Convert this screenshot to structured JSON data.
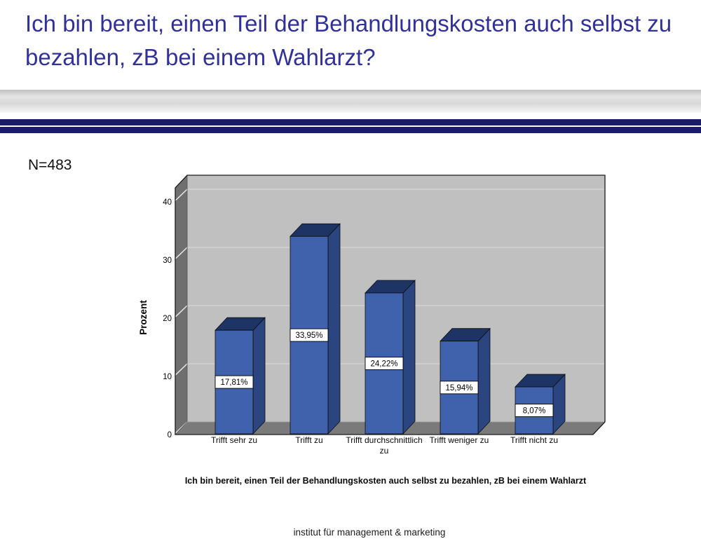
{
  "header": {
    "title": "Ich bin bereit, einen Teil der Behandlungskosten auch selbst zu bezahlen, zB bei einem Wahlarzt?",
    "title_color": "#31319b",
    "band_navy_color": "#1b1b6b"
  },
  "main": {
    "sample_label": "N=483"
  },
  "chart_data": {
    "type": "bar",
    "style": "3d-column",
    "categories": [
      "Trifft sehr zu",
      "Trifft zu",
      "Trifft durchschnittlich zu",
      "Trifft weniger zu",
      "Trifft nicht zu"
    ],
    "values": [
      17.81,
      33.95,
      24.22,
      15.94,
      8.07
    ],
    "value_labels": [
      "17,81%",
      "33,95%",
      "24,22%",
      "15,94%",
      "8,07%"
    ],
    "ylabel": "Prozent",
    "yticks": [
      0,
      10,
      20,
      30,
      40
    ],
    "ytick_labels": [
      "0",
      "10",
      "20",
      "30",
      "40"
    ],
    "ylim": [
      0,
      42.5
    ],
    "grid": true,
    "legend": "none",
    "caption": "Ich bin bereit, einen Teil der Behandlungskosten auch selbst zu bezahlen, zB bei einem Wahlarzt",
    "colors": {
      "bar_front": "#4061ab",
      "bar_top": "#1e3464",
      "bar_side": "#2a4580",
      "back_wall": "#c0c0c0",
      "side_wall": "#6f6f6f",
      "floor": "#7a7a7a",
      "gridline": "#d2d2d2",
      "tick_line": "#ececec",
      "outline": "#1a1a1a",
      "label_box_bg": "#ffffff",
      "label_box_border": "#000000"
    }
  },
  "footer": {
    "text": "institut für management & marketing"
  }
}
